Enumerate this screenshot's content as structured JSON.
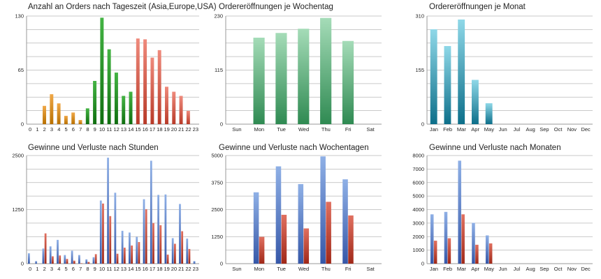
{
  "colors": {
    "grid": "#b8b8b8",
    "axis": "#9a9a9a",
    "asia": [
      "#f0a848",
      "#b87000"
    ],
    "europe": [
      "#44b444",
      "#0f6e0f"
    ],
    "usa": [
      "#ef8a7c",
      "#b83a28"
    ],
    "green": [
      "#a5dcb8",
      "#2f8a52"
    ],
    "teal": [
      "#8fd8e8",
      "#0d6f8a"
    ],
    "blue": [
      "#8fb0e6",
      "#3557a8"
    ],
    "red": [
      "#e07060",
      "#a02818"
    ]
  },
  "chart_data": [
    {
      "id": "c1",
      "type": "bar",
      "title": "Anzahl an Orders nach Tageszeit (Asia,Europe,USA)",
      "categories": [
        "0",
        "1",
        "2",
        "3",
        "4",
        "5",
        "6",
        "7",
        "8",
        "9",
        "10",
        "11",
        "12",
        "13",
        "14",
        "15",
        "16",
        "17",
        "18",
        "19",
        "20",
        "21",
        "22",
        "23"
      ],
      "series": [
        {
          "values": [
            0,
            0,
            22,
            36,
            25,
            10,
            14,
            5,
            19,
            52,
            128,
            90,
            62,
            34,
            39,
            103,
            102,
            80,
            89,
            45,
            39,
            34,
            16,
            0
          ]
        }
      ],
      "bar_colors": [
        "asia",
        "asia",
        "asia",
        "asia",
        "asia",
        "asia",
        "asia",
        "asia",
        "europe",
        "europe",
        "europe",
        "europe",
        "europe",
        "europe",
        "europe",
        "usa",
        "usa",
        "usa",
        "usa",
        "usa",
        "usa",
        "usa",
        "usa",
        "usa"
      ],
      "yticks": [
        0,
        65,
        130
      ],
      "ylim": [
        0,
        130
      ],
      "grid": true
    },
    {
      "id": "c2",
      "type": "bar",
      "title": "Ordereröffnungen je Wochentag",
      "categories": [
        "Sun",
        "Mon",
        "Tue",
        "Wed",
        "Thu",
        "Fri",
        "Sat"
      ],
      "series": [
        {
          "values": [
            0,
            184,
            194,
            203,
            226,
            177,
            0
          ]
        }
      ],
      "series_colors": [
        "green"
      ],
      "yticks": [
        0,
        115,
        230
      ],
      "ylim": [
        0,
        230
      ],
      "grid": true
    },
    {
      "id": "c3",
      "type": "bar",
      "title": "Ordereröffnungen je Monat",
      "categories": [
        "Jan",
        "Feb",
        "Mar",
        "Apr",
        "May",
        "Jun",
        "Jul",
        "Aug",
        "Sep",
        "Oct",
        "Nov",
        "Dec"
      ],
      "series": [
        {
          "values": [
            272,
            224,
            300,
            127,
            60,
            0,
            0,
            0,
            0,
            0,
            0,
            0
          ]
        }
      ],
      "series_colors": [
        "teal"
      ],
      "yticks": [
        0,
        155,
        310
      ],
      "ylim": [
        0,
        310
      ],
      "grid": true
    },
    {
      "id": "c4",
      "type": "bar",
      "title": "Gewinne und Verluste nach Stunden",
      "categories": [
        "0",
        "1",
        "2",
        "3",
        "4",
        "5",
        "6",
        "7",
        "8",
        "9",
        "10",
        "11",
        "12",
        "13",
        "14",
        "15",
        "16",
        "17",
        "18",
        "19",
        "20",
        "21",
        "22",
        "23"
      ],
      "series": [
        {
          "values": [
            240,
            60,
            350,
            400,
            550,
            200,
            300,
            200,
            100,
            150,
            1460,
            2450,
            1640,
            760,
            720,
            620,
            1490,
            2380,
            1590,
            1600,
            590,
            1380,
            580,
            60
          ]
        },
        {
          "values": [
            0,
            0,
            700,
            170,
            190,
            110,
            70,
            10,
            40,
            220,
            1390,
            1100,
            230,
            370,
            420,
            500,
            1260,
            940,
            890,
            210,
            460,
            750,
            340,
            0
          ]
        }
      ],
      "series_colors": [
        "blue",
        "red"
      ],
      "yticks": [
        0,
        1250,
        2500
      ],
      "ylim": [
        0,
        2500
      ],
      "grid": true
    },
    {
      "id": "c5",
      "type": "bar",
      "title": "Gewinne und Verluste nach Wochentagen",
      "categories": [
        "Sun",
        "Mon",
        "Tue",
        "Wed",
        "Thu",
        "Fri",
        "Sat"
      ],
      "series": [
        {
          "values": [
            0,
            3300,
            4500,
            3680,
            4960,
            3900,
            0
          ]
        },
        {
          "values": [
            0,
            1240,
            2260,
            1630,
            2860,
            2230,
            0
          ]
        }
      ],
      "series_colors": [
        "blue",
        "red"
      ],
      "yticks": [
        0,
        1250,
        2500,
        3750,
        5000
      ],
      "ylim": [
        0,
        5000
      ],
      "grid": true
    },
    {
      "id": "c6",
      "type": "bar",
      "title": "Gewinne und Verluste nach Monaten",
      "categories": [
        "Jan",
        "Feb",
        "Mar",
        "Apr",
        "May",
        "Jun",
        "Jul",
        "Aug",
        "Sep",
        "Oct",
        "Nov",
        "Dec"
      ],
      "series": [
        {
          "values": [
            3650,
            3830,
            7620,
            3020,
            2090,
            0,
            0,
            0,
            0,
            0,
            0,
            0
          ]
        },
        {
          "values": [
            1700,
            1880,
            3650,
            1400,
            1500,
            0,
            0,
            0,
            0,
            0,
            0,
            0
          ]
        }
      ],
      "series_colors": [
        "blue",
        "red"
      ],
      "yticks": [
        0,
        1000,
        2000,
        3000,
        4000,
        5000,
        6000,
        7000,
        8000
      ],
      "ylim": [
        0,
        8000
      ],
      "grid": true
    }
  ]
}
